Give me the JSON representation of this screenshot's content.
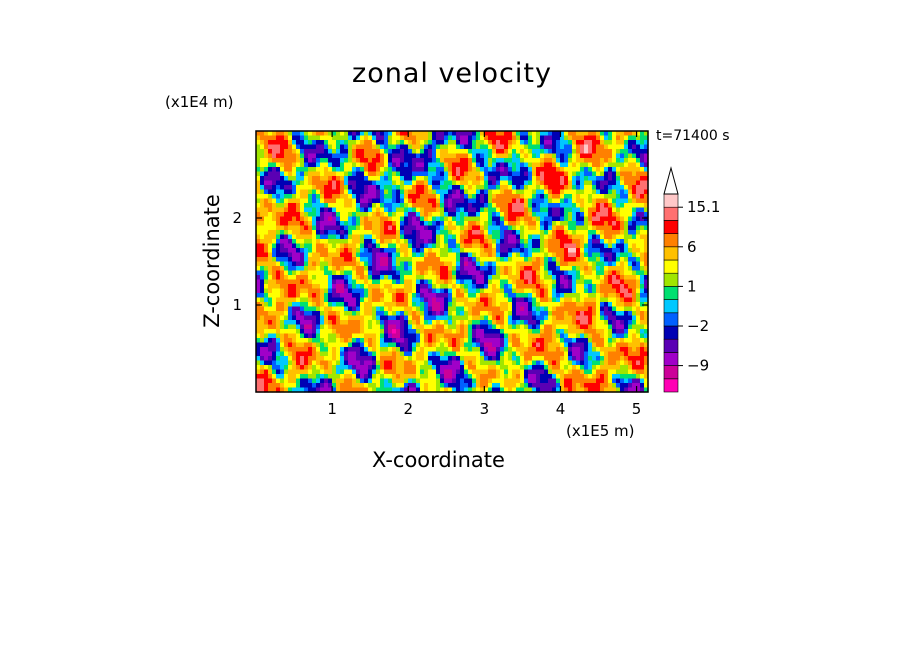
{
  "chart_data": {
    "type": "heatmap",
    "title": "zonal velocity",
    "time_label": "t=71400 s",
    "xlabel": "X-coordinate",
    "ylabel": "Z-coordinate",
    "x_unit": "(x1E5 m)",
    "z_unit": "(x1E4 m)",
    "xlim": [
      0,
      5.15
    ],
    "ylim": [
      0,
      3.0
    ],
    "x_ticks": [
      "1",
      "2",
      "3",
      "4",
      "5"
    ],
    "y_ticks": [
      "1",
      "2"
    ],
    "x_tick_values": [
      1,
      2,
      3,
      4,
      5
    ],
    "y_tick_values": [
      1,
      2
    ],
    "colorbar": {
      "levels": [
        -15,
        -12,
        -9,
        -6,
        -4,
        -2,
        -1,
        0,
        1,
        2,
        4,
        6,
        9,
        12,
        15.1
      ],
      "colors": [
        "#ff00b4",
        "#cc0099",
        "#a000c8",
        "#5a00b4",
        "#0000b4",
        "#0060ff",
        "#00c8ff",
        "#00e070",
        "#a0e600",
        "#ffff00",
        "#ffc000",
        "#ff8000",
        "#ff0000",
        "#ff7070",
        "#ffc8c8"
      ],
      "labels": [
        "15.1",
        "6",
        "1",
        "−2",
        "−9"
      ],
      "label_values": [
        15.1,
        6,
        1,
        -2,
        -9
      ]
    }
  }
}
